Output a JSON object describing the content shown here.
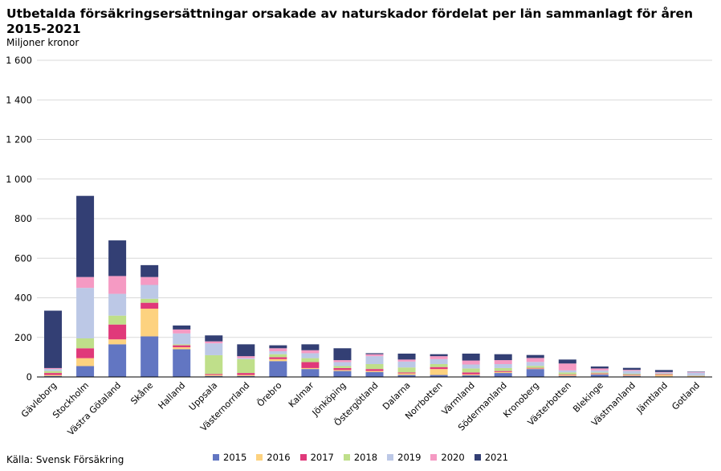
{
  "header": {
    "title": "Utbetalda försäkringsersättningar orsakade av naturskador fördelat per län sammanlagt för åren 2015-2021",
    "unit": "Miljoner kronor"
  },
  "footer": {
    "source": "Källa: Svensk Försäkring"
  },
  "chart_data": {
    "type": "bar",
    "stacked": true,
    "title": "Utbetalda försäkringsersättningar orsakade av naturskador fördelat per län sammanlagt för åren 2015-2021",
    "ylabel": "Miljoner kronor",
    "xlabel": "",
    "ylim": [
      0,
      1600
    ],
    "yticks": [
      0,
      200,
      400,
      600,
      800,
      1000,
      1200,
      1400,
      1600
    ],
    "ytick_labels": [
      "0",
      "200",
      "400",
      "600",
      "800",
      "1 000",
      "1 200",
      "1 400",
      "1 600"
    ],
    "grid": true,
    "legend_position": "bottom",
    "categories": [
      "Gävleborg",
      "Stockholm",
      "Västra Götaland",
      "Skåne",
      "Halland",
      "Uppsala",
      "Västernorrland",
      "Örebro",
      "Kalmar",
      "Jönköping",
      "Östergötland",
      "Dalarna",
      "Norrbotten",
      "Värmland",
      "Södermanland",
      "Kronoberg",
      "Västerbotten",
      "Blekinge",
      "Västmanland",
      "Jämtland",
      "Gotland"
    ],
    "series": [
      {
        "name": "2015",
        "color": "#6276c2",
        "values": [
          5,
          55,
          165,
          205,
          140,
          5,
          5,
          80,
          40,
          30,
          25,
          10,
          10,
          8,
          20,
          40,
          5,
          12,
          5,
          3,
          2
        ]
      },
      {
        "name": "2016",
        "color": "#fdd27f",
        "values": [
          5,
          40,
          25,
          140,
          10,
          5,
          5,
          10,
          5,
          5,
          5,
          8,
          30,
          5,
          5,
          3,
          5,
          3,
          3,
          8,
          2
        ]
      },
      {
        "name": "2017",
        "color": "#e0397a",
        "values": [
          10,
          50,
          75,
          30,
          10,
          5,
          10,
          10,
          30,
          10,
          10,
          5,
          10,
          10,
          5,
          3,
          3,
          3,
          3,
          3,
          1
        ]
      },
      {
        "name": "2018",
        "color": "#bfdf8a",
        "values": [
          10,
          50,
          45,
          20,
          5,
          95,
          70,
          15,
          20,
          10,
          25,
          25,
          15,
          20,
          15,
          10,
          10,
          5,
          5,
          3,
          2
        ]
      },
      {
        "name": "2019",
        "color": "#bcc8e6",
        "values": [
          10,
          255,
          110,
          70,
          55,
          60,
          5,
          15,
          25,
          20,
          40,
          30,
          25,
          20,
          20,
          20,
          10,
          10,
          15,
          5,
          15
        ]
      },
      {
        "name": "2020",
        "color": "#f59ac3",
        "values": [
          5,
          55,
          90,
          40,
          20,
          10,
          10,
          15,
          15,
          10,
          10,
          10,
          15,
          20,
          20,
          20,
          35,
          10,
          5,
          3,
          3
        ]
      },
      {
        "name": "2021",
        "color": "#333f74",
        "values": [
          290,
          410,
          180,
          60,
          20,
          30,
          60,
          15,
          30,
          60,
          5,
          30,
          10,
          35,
          30,
          15,
          20,
          10,
          10,
          10,
          2
        ]
      }
    ]
  }
}
